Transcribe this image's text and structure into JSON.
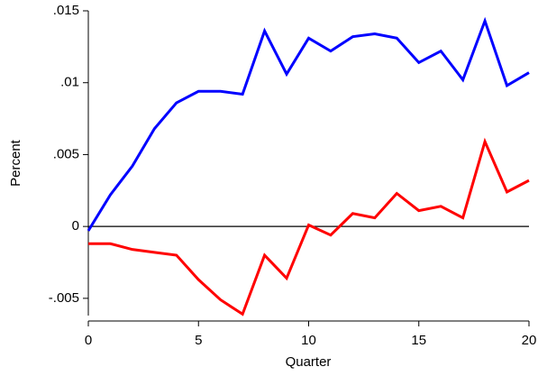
{
  "chart_data": {
    "type": "line",
    "x": [
      0,
      1,
      2,
      3,
      4,
      5,
      6,
      7,
      8,
      9,
      10,
      11,
      12,
      13,
      14,
      15,
      16,
      17,
      18,
      19,
      20
    ],
    "series": [
      {
        "color": "#0000ff",
        "values": [
          -0.0003,
          0.0022,
          0.0042,
          0.0068,
          0.0086,
          0.0094,
          0.0094,
          0.0092,
          0.0136,
          0.0106,
          0.0131,
          0.0122,
          0.0132,
          0.0134,
          0.0131,
          0.0114,
          0.0122,
          0.0102,
          0.0143,
          0.0098,
          0.0107
        ]
      },
      {
        "color": "#ff0000",
        "values": [
          -0.0012,
          -0.0012,
          -0.0016,
          -0.0018,
          -0.002,
          -0.0037,
          -0.0051,
          -0.0061,
          -0.002,
          -0.0036,
          0.0001,
          -0.0006,
          0.0009,
          0.0006,
          0.0023,
          0.0011,
          0.0014,
          0.0006,
          0.0059,
          0.0024,
          0.0032
        ]
      }
    ],
    "xlabel": "Quarter",
    "ylabel": "Percent",
    "xlim": [
      0,
      20
    ],
    "xticks": [
      0,
      5,
      10,
      15,
      20
    ],
    "ylim": [
      -0.0062,
      0.015
    ],
    "yticks": [
      {
        "value": -0.005,
        "label": "-.005"
      },
      0,
      {
        "value": 0.005,
        "label": ".005"
      },
      {
        "value": 0.01,
        "label": ".01"
      },
      {
        "value": 0.015,
        "label": ".015"
      }
    ],
    "reference_line": 0
  }
}
